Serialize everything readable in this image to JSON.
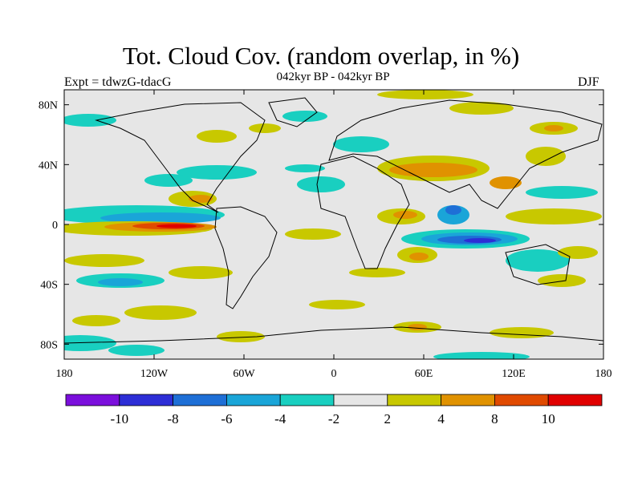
{
  "title": "Tot. Cloud Cov. (random overlap, in %)",
  "subtitle_left": "Expt = tdwzG-tdacG",
  "subtitle_center": "042kyr BP - 042kyr BP",
  "subtitle_right": "DJF",
  "map": {
    "lon_range": [
      -180,
      180
    ],
    "lat_range": [
      -90,
      90
    ],
    "background_color": "#e6e6e6",
    "lat_ticks": [
      {
        "value": 80,
        "label": "80N"
      },
      {
        "value": 40,
        "label": "40N"
      },
      {
        "value": 0,
        "label": "0"
      },
      {
        "value": -40,
        "label": "40S"
      },
      {
        "value": -80,
        "label": "80S"
      }
    ],
    "lon_ticks": [
      {
        "value": -180,
        "label": "180"
      },
      {
        "value": -120,
        "label": "120W"
      },
      {
        "value": -60,
        "label": "60W"
      },
      {
        "value": 0,
        "label": "0"
      },
      {
        "value": 60,
        "label": "60E"
      },
      {
        "value": 120,
        "label": "120E"
      },
      {
        "value": 180,
        "label": "180"
      }
    ]
  },
  "colorbar": {
    "labels": [
      "-10",
      "-8",
      "-6",
      "-4",
      "-2",
      "2",
      "4",
      "8",
      "10"
    ],
    "colors": [
      "#7b0fdc",
      "#2d2ed6",
      "#1e6fd6",
      "#1aa5d8",
      "#19cfc0",
      "#e6e6e6",
      "#c8c800",
      "#e09200",
      "#e04a00",
      "#e00000"
    ]
  }
}
